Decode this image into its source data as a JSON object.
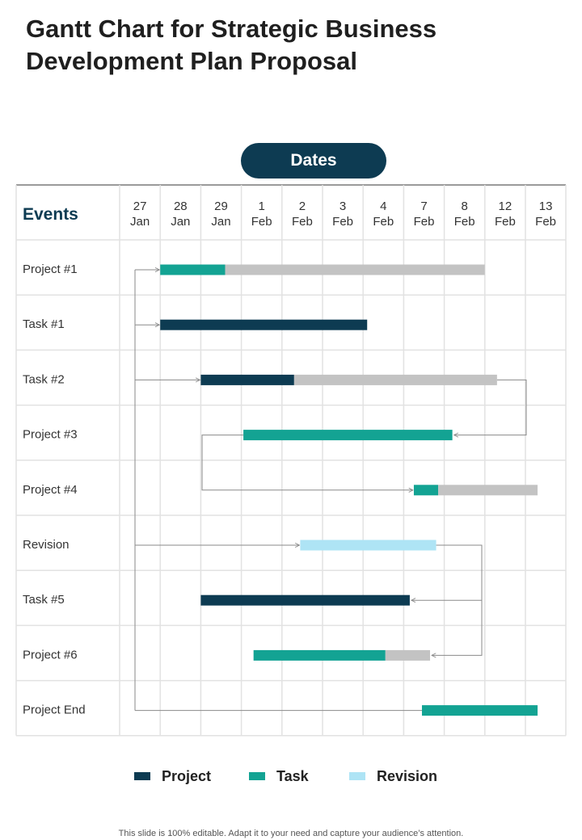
{
  "title": "Gantt Chart for Strategic Business Development Plan Proposal",
  "dates_header": "Dates",
  "events_header": "Events",
  "footer": "This slide is 100% editable. Adapt it to your need and capture your audience’s attention.",
  "colors": {
    "project": "#0d3b52",
    "task": "#13a393",
    "revision": "#aee4f5",
    "remaining": "#c3c3c3",
    "grid": "#e2e2e2",
    "connector": "#8a8a8a"
  },
  "legend": [
    {
      "label": "Project",
      "color": "#0d3b52"
    },
    {
      "label": "Task",
      "color": "#13a393"
    },
    {
      "label": "Revision",
      "color": "#aee4f5"
    }
  ],
  "chart_data": {
    "type": "gantt",
    "title": "Gantt Chart for Strategic Business Development Plan Proposal",
    "date_columns": [
      {
        "day": "27",
        "month": "Jan"
      },
      {
        "day": "28",
        "month": "Jan"
      },
      {
        "day": "29",
        "month": "Jan"
      },
      {
        "day": "1",
        "month": "Feb"
      },
      {
        "day": "2",
        "month": "Feb"
      },
      {
        "day": "3",
        "month": "Feb"
      },
      {
        "day": "4",
        "month": "Feb"
      },
      {
        "day": "7",
        "month": "Feb"
      },
      {
        "day": "8",
        "month": "Feb"
      },
      {
        "day": "12",
        "month": "Feb"
      },
      {
        "day": "13",
        "month": "Feb"
      }
    ],
    "rows": [
      {
        "label": "Project #1",
        "segments": [
          {
            "start": 1.0,
            "end": 2.6,
            "kind": "task"
          },
          {
            "start": 2.6,
            "end": 9.0,
            "kind": "remaining"
          }
        ]
      },
      {
        "label": "Task #1",
        "segments": [
          {
            "start": 1.0,
            "end": 6.1,
            "kind": "project"
          }
        ]
      },
      {
        "label": "Task #2",
        "segments": [
          {
            "start": 2.0,
            "end": 4.3,
            "kind": "project"
          },
          {
            "start": 4.3,
            "end": 9.3,
            "kind": "remaining"
          }
        ]
      },
      {
        "label": "Project #3",
        "segments": [
          {
            "start": 3.05,
            "end": 8.2,
            "kind": "task"
          }
        ]
      },
      {
        "label": "Project #4",
        "segments": [
          {
            "start": 7.25,
            "end": 7.85,
            "kind": "task"
          },
          {
            "start": 7.85,
            "end": 10.3,
            "kind": "remaining"
          }
        ]
      },
      {
        "label": "Revision",
        "segments": [
          {
            "start": 4.45,
            "end": 7.8,
            "kind": "revision"
          }
        ]
      },
      {
        "label": "Task #5",
        "segments": [
          {
            "start": 2.0,
            "end": 7.15,
            "kind": "project"
          }
        ]
      },
      {
        "label": "Project #6",
        "segments": [
          {
            "start": 3.3,
            "end": 6.55,
            "kind": "task"
          },
          {
            "start": 6.55,
            "end": 7.65,
            "kind": "remaining"
          }
        ]
      },
      {
        "label": "Project End",
        "segments": [
          {
            "start": 7.45,
            "end": 10.3,
            "kind": "task"
          }
        ]
      }
    ]
  }
}
